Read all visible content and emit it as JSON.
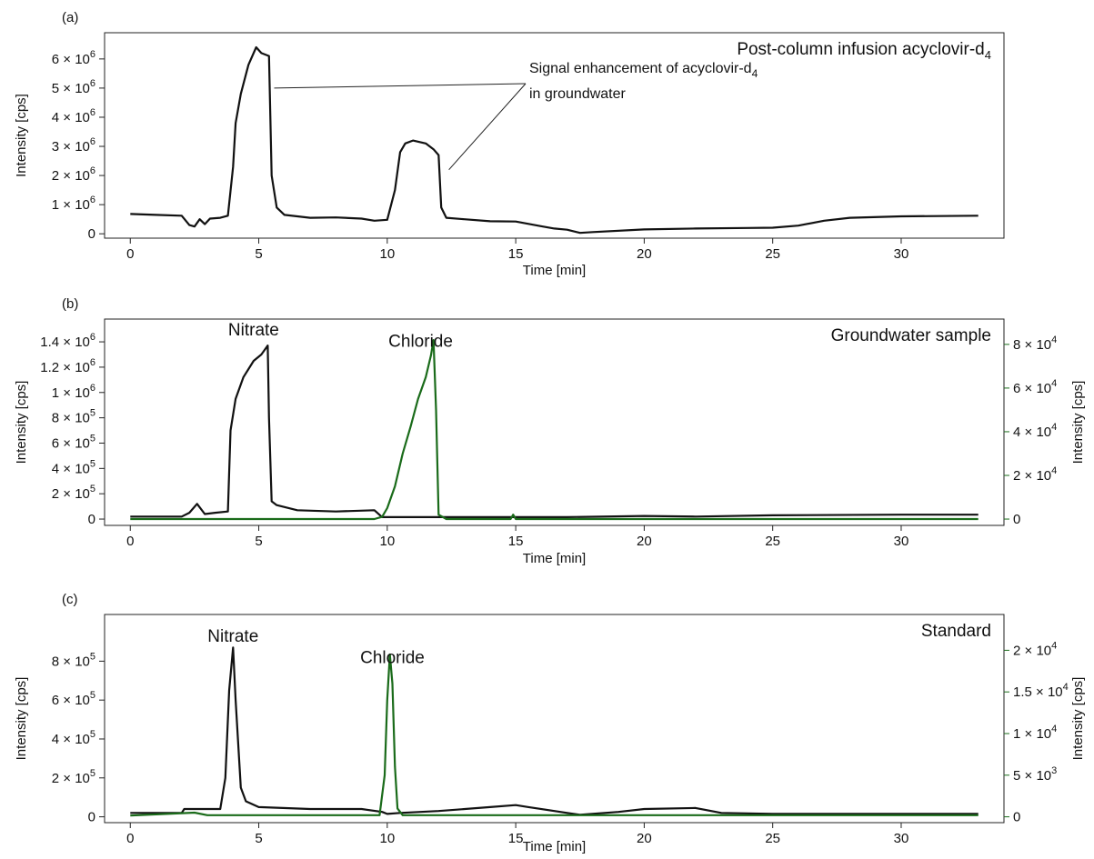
{
  "chart_data": [
    {
      "type": "line",
      "panel_label": "(a)",
      "corner_label": "Post-column infusion acyclovir-d",
      "corner_label_sub": "4",
      "xlabel": "Time [min]",
      "ylabel": "Intensity [cps]",
      "xlim": [
        -1,
        34
      ],
      "ylim": [
        -150000,
        6900000
      ],
      "x_ticks": [
        0,
        5,
        10,
        15,
        20,
        25,
        30
      ],
      "x_tick_labels": [
        "0",
        "5",
        "10",
        "15",
        "20",
        "25",
        "30"
      ],
      "y_ticks": [
        0,
        1000000,
        2000000,
        3000000,
        4000000,
        5000000,
        6000000
      ],
      "y_tick_labels": [
        {
          "m": "",
          "e": ""
        },
        {
          "m": "1",
          "e": "6"
        },
        {
          "m": "2",
          "e": "6"
        },
        {
          "m": "3",
          "e": "6"
        },
        {
          "m": "4",
          "e": "6"
        },
        {
          "m": "5",
          "e": "6"
        },
        {
          "m": "6",
          "e": "6"
        }
      ],
      "y_zero_label": "0",
      "annotation": {
        "line1": "Signal enhancement of acyclovir-d",
        "line1_sub": "4",
        "line2": "in groundwater"
      },
      "series": [
        {
          "color": "#111111",
          "x": [
            0,
            1,
            2,
            2.3,
            2.5,
            2.7,
            2.9,
            3.1,
            3.5,
            3.8,
            4.0,
            4.1,
            4.3,
            4.6,
            4.9,
            5.1,
            5.4,
            5.5,
            5.7,
            6.0,
            7,
            8,
            9,
            9.5,
            10.0,
            10.3,
            10.5,
            10.7,
            11,
            11.5,
            11.8,
            12.0,
            12.1,
            12.3,
            13,
            14,
            15,
            16,
            16.5,
            17,
            17.5,
            18,
            20,
            22,
            24,
            25,
            26,
            27,
            28,
            30,
            33
          ],
          "y": [
            680000,
            650000,
            620000,
            300000,
            250000,
            500000,
            330000,
            520000,
            550000,
            620000,
            2300000,
            3800000,
            4800000,
            5800000,
            6400000,
            6200000,
            6100000,
            2000000,
            900000,
            650000,
            550000,
            560000,
            520000,
            450000,
            480000,
            1500000,
            2800000,
            3100000,
            3200000,
            3100000,
            2900000,
            2700000,
            900000,
            550000,
            500000,
            430000,
            420000,
            260000,
            180000,
            140000,
            30000,
            60000,
            150000,
            180000,
            200000,
            210000,
            280000,
            450000,
            550000,
            600000,
            620000
          ]
        }
      ]
    },
    {
      "type": "line",
      "panel_label": "(b)",
      "corner_label": "Groundwater sample",
      "xlabel": "Time [min]",
      "ylabel": "Intensity [cps]",
      "ylabel_right": "Intensity [cps]",
      "xlim": [
        -1,
        34
      ],
      "ylim": [
        -50000,
        1580000
      ],
      "ylim_right": [
        -2900000,
        91600
      ],
      "ylim_right_fixed": [
        -2900,
        91600
      ],
      "x_ticks": [
        0,
        5,
        10,
        15,
        20,
        25,
        30
      ],
      "x_tick_labels": [
        "0",
        "5",
        "10",
        "15",
        "20",
        "25",
        "30"
      ],
      "y_ticks": [
        0,
        200000,
        400000,
        600000,
        800000,
        1000000,
        1200000,
        1400000
      ],
      "y_tick_labels": [
        {
          "m": "",
          "e": ""
        },
        {
          "m": "2",
          "e": "5"
        },
        {
          "m": "4",
          "e": "5"
        },
        {
          "m": "6",
          "e": "5"
        },
        {
          "m": "8",
          "e": "5"
        },
        {
          "m": "1",
          "e": "6"
        },
        {
          "m": "1.2",
          "e": "6"
        },
        {
          "m": "1.4",
          "e": "6"
        }
      ],
      "y_zero_label": "0",
      "y_ticks_right": [
        0,
        20000,
        40000,
        60000,
        80000
      ],
      "y_tick_labels_right": [
        {
          "m": "",
          "e": ""
        },
        {
          "m": "2",
          "e": "4"
        },
        {
          "m": "4",
          "e": "4"
        },
        {
          "m": "6",
          "e": "4"
        },
        {
          "m": "8",
          "e": "4"
        }
      ],
      "peak_labels": [
        {
          "text": "Nitrate",
          "x": 4.8,
          "y": 1450000
        },
        {
          "text": "Chloride",
          "x": 11.3,
          "y": 1360000
        }
      ],
      "series": [
        {
          "color": "#111111",
          "x": [
            0,
            2,
            2.3,
            2.6,
            2.9,
            3.3,
            3.8,
            3.9,
            4.1,
            4.4,
            4.8,
            5.1,
            5.35,
            5.4,
            5.5,
            5.7,
            6.5,
            8,
            9.5,
            9.8,
            10,
            12,
            15,
            17,
            20,
            22,
            25,
            30,
            33
          ],
          "y": [
            20000,
            20000,
            50000,
            120000,
            40000,
            50000,
            60000,
            700000,
            950000,
            1120000,
            1250000,
            1300000,
            1370000,
            800000,
            140000,
            110000,
            70000,
            60000,
            70000,
            15000,
            15000,
            15000,
            15000,
            15000,
            25000,
            20000,
            30000,
            35000,
            35000
          ]
        },
        {
          "color": "#1a6b1a",
          "axis": "right",
          "x": [
            0,
            9.5,
            9.8,
            10.0,
            10.3,
            10.6,
            10.9,
            11.2,
            11.5,
            11.7,
            11.8,
            11.9,
            12.0,
            12.3,
            14.8,
            14.9,
            15.0,
            20,
            25,
            30,
            33
          ],
          "y": [
            0,
            0,
            1000,
            5000,
            15000,
            30000,
            42000,
            55000,
            65000,
            75000,
            82000,
            50000,
            2000,
            0,
            0,
            2000,
            0,
            0,
            0,
            0,
            0
          ]
        }
      ]
    },
    {
      "type": "line",
      "panel_label": "(c)",
      "corner_label": "Standard",
      "xlabel": "Time [min]",
      "ylabel": "Intensity [cps]",
      "ylabel_right": "Intensity [cps]",
      "xlim": [
        -1,
        34
      ],
      "ylim": [
        -30000,
        1040000
      ],
      "ylim_right": [
        -700,
        24300
      ],
      "x_ticks": [
        0,
        5,
        10,
        15,
        20,
        25,
        30
      ],
      "x_tick_labels": [
        "0",
        "5",
        "10",
        "15",
        "20",
        "25",
        "30"
      ],
      "y_ticks": [
        0,
        200000,
        400000,
        600000,
        800000
      ],
      "y_tick_labels": [
        {
          "m": "",
          "e": ""
        },
        {
          "m": "2",
          "e": "5"
        },
        {
          "m": "4",
          "e": "5"
        },
        {
          "m": "6",
          "e": "5"
        },
        {
          "m": "8",
          "e": "5"
        }
      ],
      "y_zero_label": "0",
      "y_ticks_right": [
        0,
        5000,
        10000,
        15000,
        20000
      ],
      "y_tick_labels_right": [
        {
          "m": "",
          "e": ""
        },
        {
          "m": "5",
          "e": "3"
        },
        {
          "m": "1",
          "e": "4"
        },
        {
          "m": "1.5",
          "e": "4"
        },
        {
          "m": "2",
          "e": "4"
        }
      ],
      "peak_labels": [
        {
          "text": "Nitrate",
          "x": 4.0,
          "y": 900000
        },
        {
          "text": "Chloride",
          "x": 10.2,
          "y": 790000
        }
      ],
      "series": [
        {
          "color": "#111111",
          "x": [
            0,
            2,
            2.1,
            3.5,
            3.7,
            3.85,
            4.0,
            4.1,
            4.3,
            4.5,
            5,
            7,
            9,
            9.8,
            10,
            10.5,
            12,
            14,
            15,
            15.5,
            17,
            17.5,
            19,
            20,
            22,
            23,
            25,
            30,
            33
          ],
          "y": [
            20000,
            20000,
            40000,
            40000,
            200000,
            650000,
            870000,
            600000,
            150000,
            80000,
            50000,
            40000,
            40000,
            25000,
            15000,
            20000,
            30000,
            50000,
            60000,
            50000,
            20000,
            10000,
            25000,
            40000,
            45000,
            20000,
            15000,
            15000,
            15000
          ]
        },
        {
          "color": "#1a6b1a",
          "axis": "right",
          "x": [
            0,
            2.5,
            3,
            9.7,
            9.9,
            10.0,
            10.1,
            10.2,
            10.3,
            10.4,
            10.6,
            12,
            20,
            33
          ],
          "y": [
            150,
            500,
            200,
            200,
            5000,
            14000,
            19500,
            16000,
            6000,
            1000,
            200,
            200,
            200,
            200
          ]
        }
      ]
    }
  ]
}
